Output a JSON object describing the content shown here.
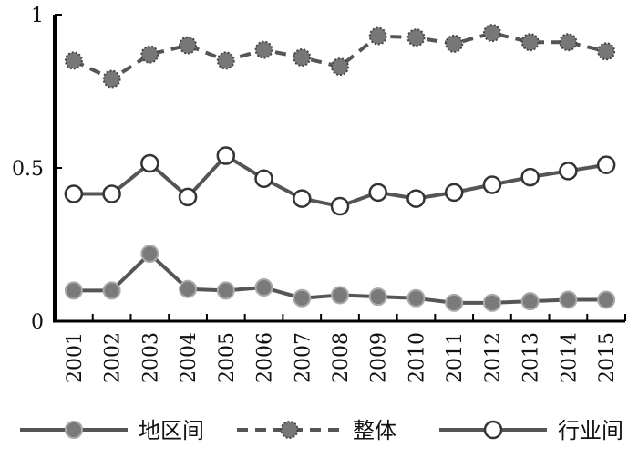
{
  "chart_data": {
    "type": "line",
    "title": "",
    "xlabel": "",
    "ylabel": "",
    "categories": [
      "2001",
      "2002",
      "2003",
      "2004",
      "2005",
      "2006",
      "2007",
      "2008",
      "2009",
      "2010",
      "2011",
      "2012",
      "2013",
      "2014",
      "2015"
    ],
    "ylim": [
      0,
      1
    ],
    "yticks": [
      "0",
      "0.5",
      "1"
    ],
    "grid": false,
    "legend_position": "bottom",
    "series": [
      {
        "name": "地区间",
        "style": "solid",
        "marker": "filled-circle",
        "line_color": "#555555",
        "marker_color": "#7a7a7a",
        "values": [
          0.1,
          0.1,
          0.22,
          0.105,
          0.1,
          0.11,
          0.075,
          0.085,
          0.08,
          0.075,
          0.06,
          0.06,
          0.065,
          0.07,
          0.07
        ]
      },
      {
        "name": "整体",
        "style": "dashed",
        "marker": "dotted-circle",
        "line_color": "#555555",
        "marker_color": "#777777",
        "values": [
          0.85,
          0.79,
          0.87,
          0.9,
          0.85,
          0.885,
          0.86,
          0.83,
          0.93,
          0.925,
          0.905,
          0.94,
          0.91,
          0.91,
          0.88
        ]
      },
      {
        "name": "行业间",
        "style": "solid",
        "marker": "open-circle",
        "line_color": "#555555",
        "marker_color": "#ffffff",
        "values": [
          0.415,
          0.415,
          0.515,
          0.405,
          0.54,
          0.465,
          0.4,
          0.375,
          0.42,
          0.4,
          0.42,
          0.445,
          0.47,
          0.49,
          0.51
        ]
      }
    ]
  }
}
